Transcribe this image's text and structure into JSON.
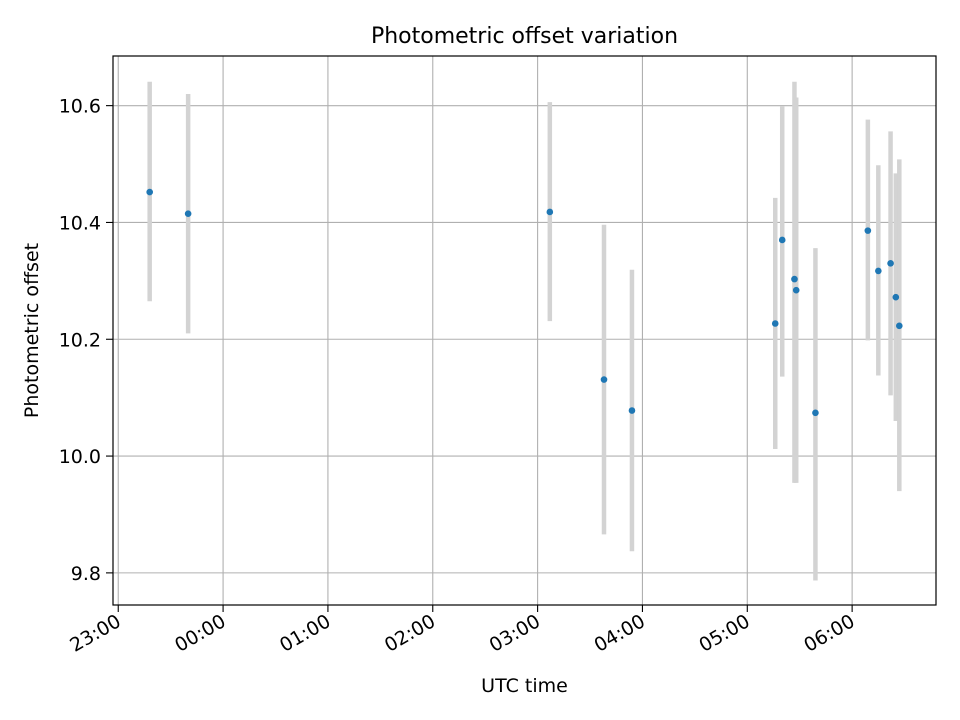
{
  "chart_data": {
    "type": "scatter",
    "title": "Photometric offset variation",
    "xlabel": "UTC time",
    "ylabel": "Photometric offset",
    "x_ticks": [
      "23:00",
      "00:00",
      "01:00",
      "02:00",
      "03:00",
      "04:00",
      "05:00",
      "06:00"
    ],
    "y_ticks": [
      "9.8",
      "10.0",
      "10.2",
      "10.4",
      "10.6"
    ],
    "xlim": [
      "22:57",
      "06:48"
    ],
    "ylim": [
      9.745,
      10.685
    ],
    "grid": true,
    "point_color": "#1f77b4",
    "errorbar_color": "#d3d3d3",
    "points": [
      {
        "t": "23:18",
        "y": 10.452,
        "low": 10.265,
        "high": 10.641
      },
      {
        "t": "23:40",
        "y": 10.415,
        "low": 10.21,
        "high": 10.62
      },
      {
        "t": "03:07",
        "y": 10.418,
        "low": 10.231,
        "high": 10.606
      },
      {
        "t": "03:38",
        "y": 10.131,
        "low": 9.866,
        "high": 10.396
      },
      {
        "t": "03:54",
        "y": 10.078,
        "low": 9.837,
        "high": 10.319
      },
      {
        "t": "05:16",
        "y": 10.227,
        "low": 10.012,
        "high": 10.442
      },
      {
        "t": "05:20",
        "y": 10.37,
        "low": 10.136,
        "high": 10.599
      },
      {
        "t": "05:27",
        "y": 10.303,
        "low": 9.954,
        "high": 10.641
      },
      {
        "t": "05:28",
        "y": 10.284,
        "low": 9.954,
        "high": 10.614
      },
      {
        "t": "05:39",
        "y": 10.074,
        "low": 9.787,
        "high": 10.356
      },
      {
        "t": "06:09",
        "y": 10.386,
        "low": 10.198,
        "high": 10.576
      },
      {
        "t": "06:15",
        "y": 10.317,
        "low": 10.138,
        "high": 10.498
      },
      {
        "t": "06:22",
        "y": 10.33,
        "low": 10.104,
        "high": 10.556
      },
      {
        "t": "06:25",
        "y": 10.272,
        "low": 10.06,
        "high": 10.484
      },
      {
        "t": "06:27",
        "y": 10.223,
        "low": 9.94,
        "high": 10.508
      }
    ]
  }
}
